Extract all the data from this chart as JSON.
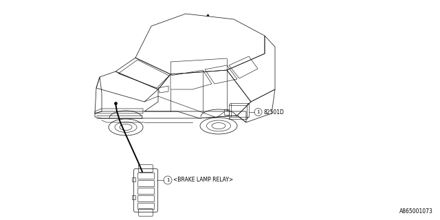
{
  "bg_color": "#ffffff",
  "part_number_label": "A865001073",
  "relay_box_label": "82501D",
  "brake_lamp_label": "<BRAKE LAMP RELAY>",
  "callout_number": "1",
  "fig_width": 6.4,
  "fig_height": 3.2,
  "dpi": 100,
  "car_lw": 0.55,
  "detail_lw": 0.45,
  "line_lw": 1.4
}
